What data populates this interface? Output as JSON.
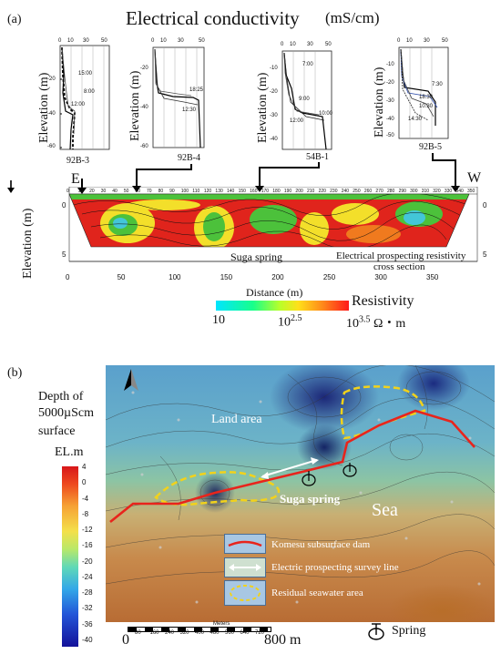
{
  "panel_a": {
    "label": "(a)",
    "title": "Electrical conductivity",
    "unit": "(mS/cm)",
    "elevation_label": "Elevation (m)",
    "profiles": [
      {
        "name": "92B-3",
        "top_ticks": [
          "0",
          "10",
          "30",
          "50"
        ],
        "y_ticks": [
          "-20",
          "-40",
          "-60"
        ],
        "times": [
          "15:00",
          "8:00",
          "12:00"
        ]
      },
      {
        "name": "92B-4",
        "top_ticks": [
          "0",
          "10",
          "30",
          "50"
        ],
        "y_ticks": [
          "-20",
          "-40",
          "-60"
        ],
        "times": [
          "18:25",
          "12:30"
        ]
      },
      {
        "name": "54B-1",
        "top_ticks": [
          "0",
          "10",
          "30",
          "50"
        ],
        "y_ticks": [
          "-10",
          "-20",
          "-30",
          "-40"
        ],
        "times": [
          "7:00",
          "9:00",
          "12:00",
          "10:00"
        ]
      },
      {
        "name": "92B-5",
        "top_ticks": [
          "0",
          "10",
          "30",
          "50"
        ],
        "y_ticks": [
          "-10",
          "-20",
          "-30",
          "-40",
          "-50"
        ],
        "times": [
          "7:30",
          "18:30",
          "10:30",
          "14:30"
        ]
      }
    ],
    "section": {
      "east": "E",
      "west": "W",
      "spring_label": "Suga spring",
      "caption_line1": "Electrical prospecting resistivity",
      "caption_line2": "cross section",
      "x_ticks": [
        "0",
        "50",
        "100",
        "150",
        "200",
        "250",
        "300",
        "350"
      ],
      "top_ticks": [
        "0",
        "10",
        "20",
        "30",
        "40",
        "50",
        "60",
        "70",
        "80",
        "90",
        "100",
        "110",
        "120",
        "130",
        "140",
        "150",
        "160",
        "170",
        "180",
        "190",
        "200",
        "210",
        "220",
        "230",
        "240",
        "250",
        "260",
        "270",
        "280",
        "290",
        "300",
        "310",
        "320",
        "330",
        "340",
        "350"
      ],
      "left_y_ticks": [
        "0",
        "5"
      ],
      "right_y_ticks": [
        "0",
        "5"
      ],
      "x_axis_label": "Distance (m)"
    },
    "resistivity": {
      "label": "Resistivity",
      "tick_low": "10",
      "tick_mid_base": "10",
      "tick_mid_exp": "2.5",
      "tick_high_base": "10",
      "tick_high_exp": "3.5",
      "tick_high_unit": "Ω・m"
    }
  },
  "panel_b": {
    "label": "(b)",
    "depth_title_1": "Depth of",
    "depth_title_2": "5000µScm",
    "depth_title_3": "surface",
    "depth_unit": "EL.m",
    "colorbar_ticks": [
      "4",
      "0",
      "-4",
      "-8",
      "-12",
      "-16",
      "-20",
      "-24",
      "-28",
      "-32",
      "-36",
      "-40"
    ],
    "land_label": "Land area",
    "spring_label": "Suga spring",
    "sea_label": "Sea",
    "legend": [
      {
        "text": "Komesu subsurface dam"
      },
      {
        "text": "Electric prospecting survey line"
      },
      {
        "text": "Residual seawater area"
      }
    ],
    "scale": {
      "title": "Meters",
      "ticks": [
        "80",
        "160",
        "240",
        "320",
        "400",
        "480",
        "560",
        "640",
        "720"
      ],
      "start": "0",
      "end": "800 m"
    },
    "spring_symbol_label": "Spring"
  },
  "colors": {
    "dam_line": "#e8241c",
    "survey_line": "#ffffff",
    "seawater_outline": "#f2d21b",
    "section_red": "#e0241c",
    "section_green": "#4cc13b",
    "section_yellow": "#f3df2a",
    "section_cyan": "#43c6d8"
  }
}
